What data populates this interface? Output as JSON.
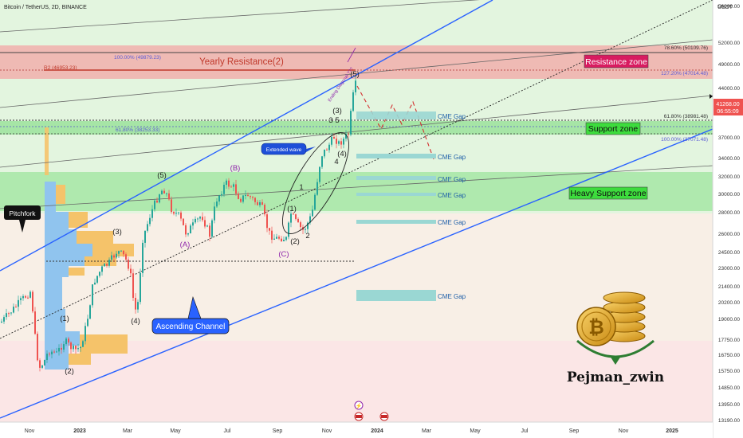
{
  "header": {
    "symbol": "Bitcoin / TetherUS, 2D, BINANCE",
    "currency": "USDT"
  },
  "price_axis": {
    "ticks": [
      "56000.00",
      "52000.00",
      "49000.00",
      "44000.00",
      "40000.00",
      "37000.00",
      "34000.00",
      "32000.00",
      "30000.00",
      "28000.00",
      "26000.00",
      "24500.00",
      "23000.00",
      "21400.00",
      "20200.00",
      "19000.00",
      "17750.00",
      "16750.00",
      "15750.00",
      "14850.00",
      "13950.00",
      "13190.00"
    ],
    "last_price": "41268.00",
    "countdown": "06:55:09"
  },
  "time_axis": {
    "ticks": [
      "Nov",
      "2023",
      "Mar",
      "May",
      "Jul",
      "Sep",
      "Nov",
      "2024",
      "Mar",
      "May",
      "Jul",
      "Sep",
      "Nov",
      "2025"
    ]
  },
  "colors": {
    "up": "#26a69a",
    "down": "#ef5350",
    "channel": "#2962ff",
    "resistance_zone": "#f3a5a5",
    "support_zone": "#9fe3a0",
    "cme_gap": "#9ad7d3"
  },
  "zones": {
    "resistance": "Resistance zone",
    "support": "Support zone",
    "heavy_support": "Heavy Support zone",
    "yearly_resistance": "Yearly Resistance(2)"
  },
  "fib": {
    "top_right_786": "78.60% (50109.76)",
    "top_left_100": "100.00% (49879.23)",
    "r2_left": "R2 (46953.23)",
    "right_127": "127.20% (47014.48)",
    "right_618": "61.80% (38981.48)",
    "left_618": "61.80% (38253.33)",
    "right_100": "100.00% (37071.48)"
  },
  "cme_gaps": [
    "CME Gap",
    "CME Gap",
    "CME Gap",
    "CME Gap",
    "CME Gap",
    "CME Gap"
  ],
  "wave_labels": {
    "w1": "(1)",
    "w2": "(2)",
    "w3": "(3)",
    "w4": "(4)",
    "w5": "(5)",
    "a": "(A)",
    "b": "(B)",
    "c": "(C)",
    "n1": "(1)",
    "n2": "(2)",
    "n3": "(3)",
    "n4": "(4)",
    "n5": "(5)",
    "s1": "1",
    "s2": "2",
    "s4": "4",
    "s35": "3 5",
    "extended": "Extended wave",
    "diag": "Ending Diagonal ???"
  },
  "callouts": {
    "pitchfork": "Pitchfork",
    "channel": "Ascending Channel"
  },
  "brand": {
    "name": "Pejman_zwin"
  },
  "chart_data": {
    "type": "candlestick",
    "title": "Bitcoin / TetherUS, 2D, BINANCE",
    "x": [
      "Nov",
      "2023",
      "Mar",
      "May",
      "Jul",
      "Sep",
      "Nov",
      "2024",
      "Mar",
      "May",
      "Jul",
      "Sep",
      "Nov",
      "2025"
    ],
    "ylabel": "USDT",
    "ylim": [
      13190,
      56000
    ],
    "y_scale": "log",
    "grid": false,
    "last_price": 41268.0
  }
}
